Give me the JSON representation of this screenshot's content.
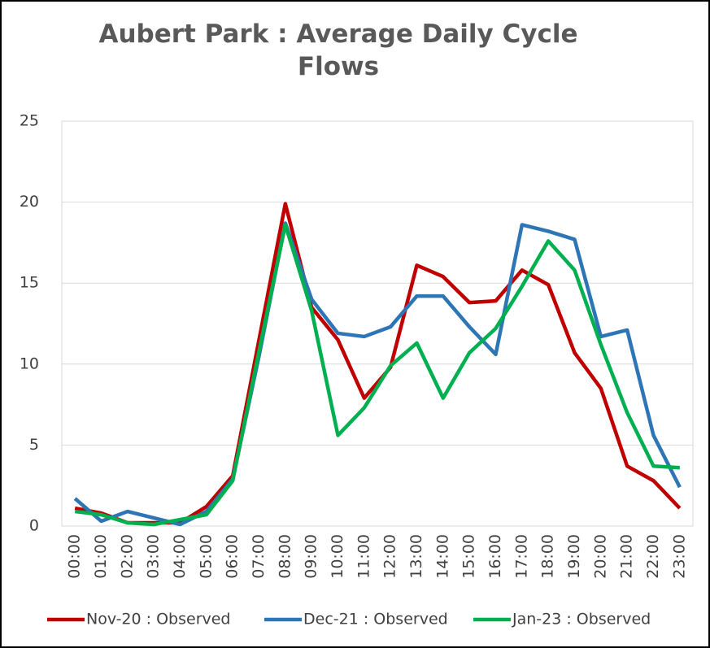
{
  "chart_data": {
    "type": "line",
    "title": "Aubert Park : Average Daily Cycle Flows",
    "categories": [
      "00:00",
      "01:00",
      "02:00",
      "03:00",
      "04:00",
      "05:00",
      "06:00",
      "07:00",
      "08:00",
      "09:00",
      "10:00",
      "11:00",
      "12:00",
      "13:00",
      "14:00",
      "15:00",
      "16:00",
      "17:00",
      "18:00",
      "19:00",
      "20:00",
      "21:00",
      "22:00",
      "23:00"
    ],
    "series": [
      {
        "name": "Nov-20 : Observed",
        "color": "#c00000",
        "values": [
          1.1,
          0.8,
          0.2,
          0.2,
          0.2,
          1.2,
          3.1,
          11.5,
          19.9,
          13.5,
          11.5,
          7.9,
          9.8,
          16.1,
          15.4,
          13.8,
          13.9,
          15.8,
          14.9,
          10.7,
          8.5,
          3.7,
          2.8,
          1.1
        ]
      },
      {
        "name": "Dec-21 : Observed",
        "color": "#2e75b6",
        "values": [
          1.7,
          0.3,
          0.9,
          0.5,
          0.1,
          0.9,
          2.9,
          10.5,
          18.7,
          14.0,
          11.9,
          11.7,
          12.3,
          14.2,
          14.2,
          12.3,
          10.6,
          18.6,
          18.2,
          17.7,
          11.7,
          12.1,
          5.6,
          2.4
        ]
      },
      {
        "name": "Jan-23 : Observed",
        "color": "#00b050",
        "values": [
          0.9,
          0.7,
          0.2,
          0.1,
          0.4,
          0.7,
          2.8,
          10.8,
          18.6,
          13.3,
          5.6,
          7.3,
          9.9,
          11.3,
          7.9,
          10.7,
          12.2,
          14.8,
          17.6,
          15.8,
          11.2,
          7.0,
          3.7,
          3.6
        ]
      }
    ],
    "ylim": [
      0,
      25
    ],
    "yticks": [
      0,
      5,
      10,
      15,
      20,
      25
    ],
    "grid": true,
    "legend": "bottom"
  }
}
